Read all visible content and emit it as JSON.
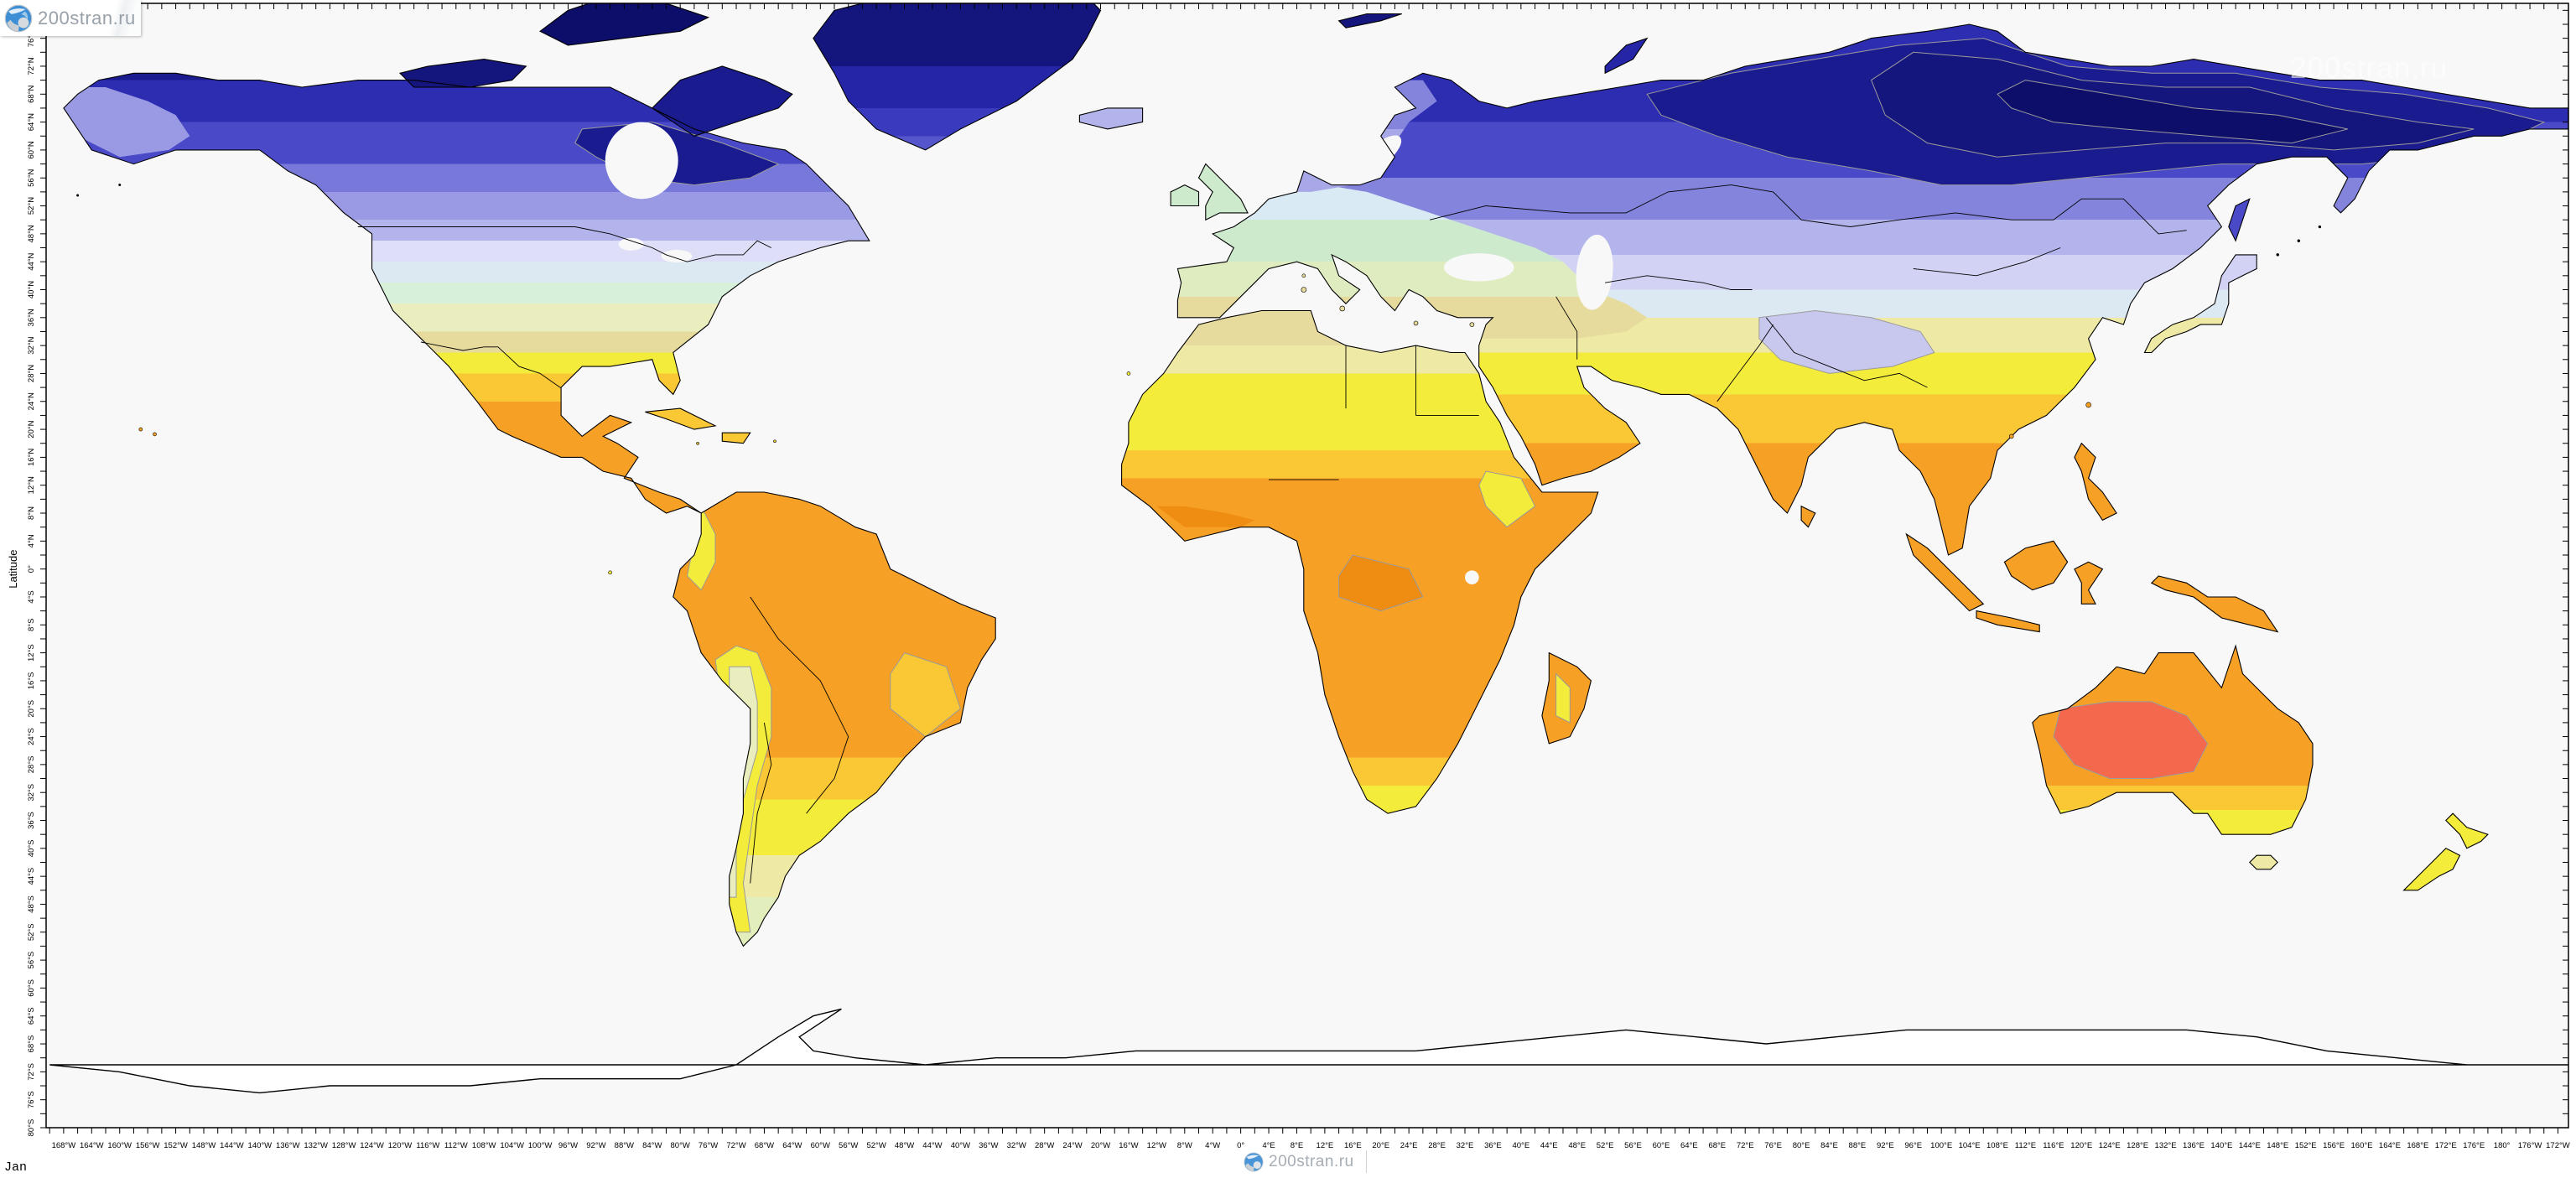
{
  "site": {
    "logo_text": "200stran.ru",
    "watermark_map_text": "200stran.ru",
    "watermark_bottom_text": "200stran.ru"
  },
  "map_meta": {
    "month_label": "Jan"
  },
  "axes": {
    "y_title": "Latitude",
    "lat_top_deg": 81,
    "lat_bottom_deg": -80,
    "lon_left_deg": -170.5,
    "lon_right_deg": 189.5,
    "label_step_deg": 4,
    "tick_step_deg": 2,
    "lat_tick_labels": [
      "76°N",
      "72°N",
      "68°N",
      "64°N",
      "60°N",
      "56°N",
      "52°N",
      "48°N",
      "44°N",
      "40°N",
      "36°N",
      "32°N",
      "28°N",
      "24°N",
      "20°N",
      "16°N",
      "12°N",
      "8°N",
      "4°N",
      "0°",
      "4°S",
      "8°S",
      "12°S",
      "16°S",
      "20°S",
      "24°S",
      "28°S",
      "32°S",
      "36°S",
      "40°S",
      "44°S",
      "48°S",
      "52°S",
      "56°S",
      "60°S",
      "64°S",
      "68°S",
      "72°S",
      "76°S",
      "80°S"
    ],
    "lon_tick_labels": [
      "168°W",
      "164°W",
      "160°W",
      "156°W",
      "152°W",
      "148°W",
      "144°W",
      "140°W",
      "136°W",
      "132°W",
      "128°W",
      "124°W",
      "120°W",
      "116°W",
      "112°W",
      "108°W",
      "104°W",
      "100°W",
      "96°W",
      "92°W",
      "88°W",
      "84°W",
      "80°W",
      "76°W",
      "72°W",
      "68°W",
      "64°W",
      "60°W",
      "56°W",
      "52°W",
      "48°W",
      "44°W",
      "40°W",
      "36°W",
      "32°W",
      "28°W",
      "24°W",
      "20°W",
      "16°W",
      "12°W",
      "8°W",
      "4°W",
      "0°",
      "4°E",
      "8°E",
      "12°E",
      "16°E",
      "20°E",
      "24°E",
      "28°E",
      "32°E",
      "36°E",
      "40°E",
      "44°E",
      "48°E",
      "52°E",
      "56°E",
      "60°E",
      "64°E",
      "68°E",
      "72°E",
      "76°E",
      "80°E",
      "84°E",
      "88°E",
      "92°E",
      "96°E",
      "100°E",
      "104°E",
      "108°E",
      "112°E",
      "116°E",
      "120°E",
      "124°E",
      "128°E",
      "132°E",
      "136°E",
      "140°E",
      "144°E",
      "148°E",
      "152°E",
      "156°E",
      "160°E",
      "164°E",
      "168°E",
      "172°E",
      "176°E",
      "180°",
      "176°W",
      "172°W"
    ]
  },
  "palette": {
    "ocean": "#f8f8f8",
    "frame": "#000000",
    "coastline": "#000000",
    "country_border": "#000000",
    "contour_line": "#9a9a9a",
    "antarctica_fill": "#ffffff",
    "scale_cold_to_hot": [
      "#0d0d6a",
      "#15157e",
      "#1b1b90",
      "#2525a8",
      "#2d2db2",
      "#3a3abe",
      "#4a4ac8",
      "#5656cc",
      "#7878da",
      "#8484dc",
      "#9a9ae4",
      "#a8a8e8",
      "#b4b4ec",
      "#c8c8ee",
      "#cdcdf2",
      "#d2d2f4",
      "#dedef8",
      "#d9eaf4",
      "#dce8f2",
      "#e6f2f5",
      "#d7f0da",
      "#cdeacd",
      "#dfecc0",
      "#e2eebc",
      "#eaeebe",
      "#e6db9c",
      "#efe9a6",
      "#f4ec3b",
      "#fac835",
      "#f6a125",
      "#ef8c12",
      "#f4694e"
    ]
  }
}
